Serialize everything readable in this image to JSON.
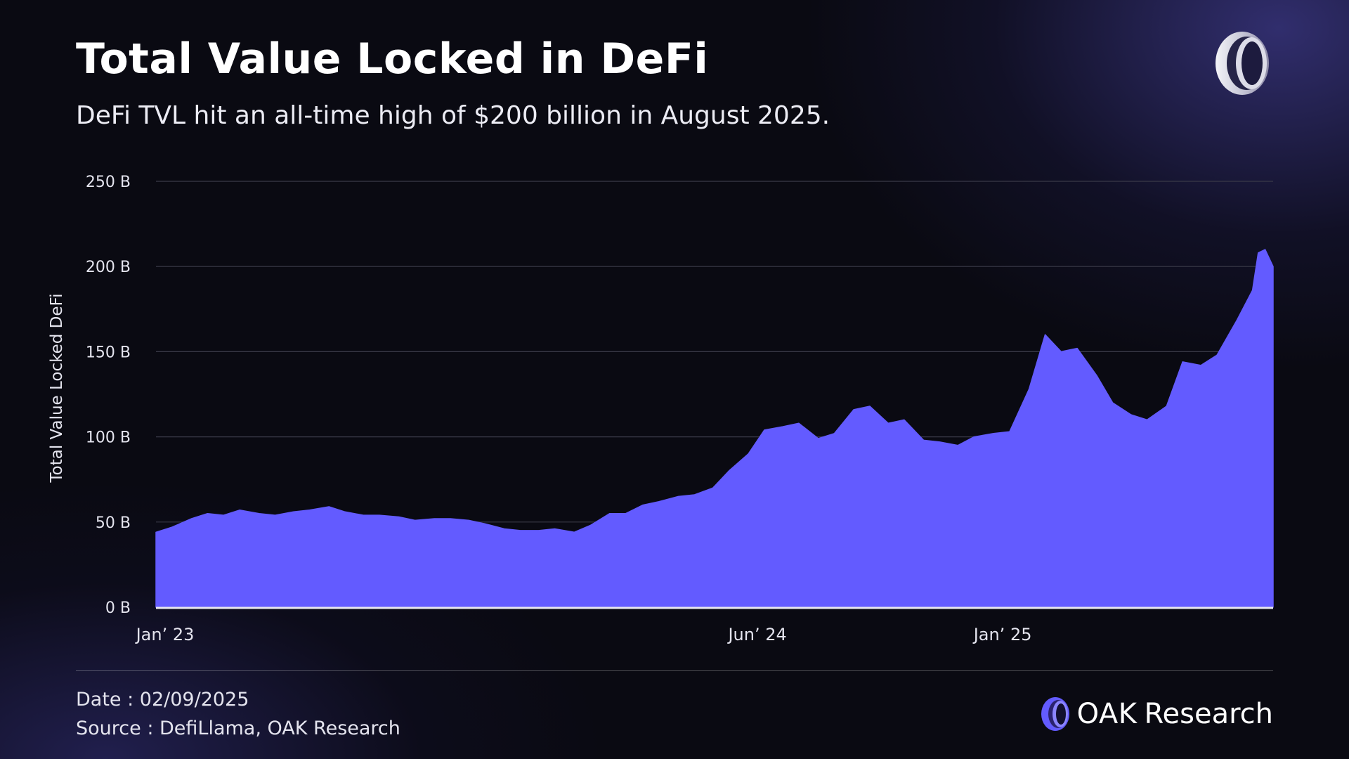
{
  "header": {
    "title": "Total Value Locked in DeFi",
    "subtitle": "DeFi TVL hit an all-time high of $200 billion in August 2025."
  },
  "footer": {
    "date": "Date : 02/09/2025",
    "source": "Source : DefiLlama, OAK Research",
    "brand_primary": "OAK",
    "brand_secondary": "Research"
  },
  "icons": {
    "top_logo": "oak-ring-logo-icon",
    "brand_logo": "oak-ring-logo-icon"
  },
  "colors": {
    "area_fill": "#635bff",
    "background": "#0a0a12",
    "gridline": "#3a3a48",
    "text": "#ffffff",
    "baseline": "#e8e8ee"
  },
  "chart_data": {
    "type": "area",
    "title": "",
    "xlabel": "",
    "ylabel": "Total Value Locked DeFi",
    "y_unit": "B",
    "ylim": [
      0,
      250
    ],
    "yticks": [
      0,
      50,
      100,
      150,
      200,
      250
    ],
    "ytick_labels": [
      "0 B",
      "50 B",
      "100 B",
      "150 B",
      "200 B",
      "250 B"
    ],
    "xlim": [
      "2023-01-01",
      "2025-09-02"
    ],
    "xticks": [
      {
        "x": "2023-01-01",
        "label": "Jan’ 23"
      },
      {
        "x": "2024-06-01",
        "label": "Jun’ 24"
      },
      {
        "x": "2025-01-01",
        "label": "Jan’ 25"
      }
    ],
    "grid": true,
    "legend": "none",
    "series": [
      {
        "values": [
          [
            "2023-01-01",
            44
          ],
          [
            "2023-01-15",
            47
          ],
          [
            "2023-02-01",
            52
          ],
          [
            "2023-02-15",
            55
          ],
          [
            "2023-03-01",
            54
          ],
          [
            "2023-03-15",
            57
          ],
          [
            "2023-04-01",
            55
          ],
          [
            "2023-04-15",
            54
          ],
          [
            "2023-05-01",
            56
          ],
          [
            "2023-05-15",
            57
          ],
          [
            "2023-06-01",
            59
          ],
          [
            "2023-06-15",
            56
          ],
          [
            "2023-07-01",
            54
          ],
          [
            "2023-07-15",
            54
          ],
          [
            "2023-08-01",
            53
          ],
          [
            "2023-08-15",
            51
          ],
          [
            "2023-09-01",
            52
          ],
          [
            "2023-09-15",
            52
          ],
          [
            "2023-10-01",
            51
          ],
          [
            "2023-10-15",
            49
          ],
          [
            "2023-11-01",
            46
          ],
          [
            "2023-11-15",
            45
          ],
          [
            "2023-12-01",
            45
          ],
          [
            "2023-12-15",
            46
          ],
          [
            "2024-01-01",
            44
          ],
          [
            "2024-01-15",
            48
          ],
          [
            "2024-02-01",
            55
          ],
          [
            "2024-02-15",
            55
          ],
          [
            "2024-03-01",
            60
          ],
          [
            "2024-03-15",
            62
          ],
          [
            "2024-04-01",
            65
          ],
          [
            "2024-04-15",
            66
          ],
          [
            "2024-05-01",
            70
          ],
          [
            "2024-05-15",
            80
          ],
          [
            "2024-06-01",
            90
          ],
          [
            "2024-06-15",
            104
          ],
          [
            "2024-07-01",
            106
          ],
          [
            "2024-07-15",
            108
          ],
          [
            "2024-08-01",
            99
          ],
          [
            "2024-08-15",
            102
          ],
          [
            "2024-09-01",
            116
          ],
          [
            "2024-09-15",
            118
          ],
          [
            "2024-10-01",
            108
          ],
          [
            "2024-10-15",
            110
          ],
          [
            "2024-11-01",
            98
          ],
          [
            "2024-11-15",
            97
          ],
          [
            "2024-12-01",
            95
          ],
          [
            "2024-12-15",
            100
          ],
          [
            "2025-01-01",
            102
          ],
          [
            "2025-01-15",
            103
          ],
          [
            "2025-02-01",
            128
          ],
          [
            "2025-02-15",
            160
          ],
          [
            "2025-03-01",
            150
          ],
          [
            "2025-03-15",
            152
          ],
          [
            "2025-04-01",
            136
          ],
          [
            "2025-04-15",
            120
          ],
          [
            "2025-05-01",
            113
          ],
          [
            "2025-05-15",
            110
          ],
          [
            "2025-06-01",
            118
          ],
          [
            "2025-06-15",
            144
          ],
          [
            "2025-07-01",
            142
          ],
          [
            "2025-07-15",
            148
          ],
          [
            "2025-08-01",
            168
          ],
          [
            "2025-08-15",
            186
          ],
          [
            "2025-08-20",
            208
          ],
          [
            "2025-08-26",
            210
          ],
          [
            "2025-09-02",
            200
          ]
        ]
      }
    ]
  }
}
